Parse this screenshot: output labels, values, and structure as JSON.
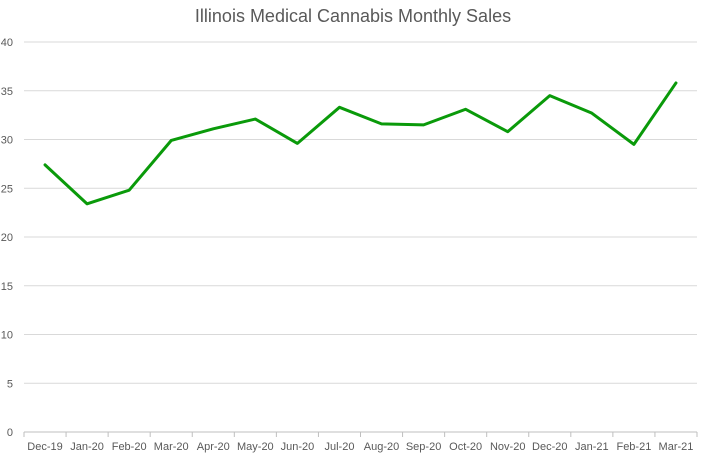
{
  "chart_data": {
    "type": "line",
    "title": "Illinois Medical Cannabis Monthly Sales",
    "xlabel": "",
    "ylabel": "",
    "ylim": [
      0,
      40
    ],
    "yticks": [
      0,
      5,
      10,
      15,
      20,
      25,
      30,
      35,
      40
    ],
    "grid": true,
    "legend": "none",
    "categories": [
      "Dec-19",
      "Jan-20",
      "Feb-20",
      "Mar-20",
      "Apr-20",
      "May-20",
      "Jun-20",
      "Jul-20",
      "Aug-20",
      "Sep-20",
      "Oct-20",
      "Nov-20",
      "Dec-20",
      "Jan-21",
      "Feb-21",
      "Mar-21"
    ],
    "series": [
      {
        "name": "Sales",
        "color": "#0a9a0a",
        "values": [
          27.4,
          23.4,
          24.8,
          29.9,
          31.1,
          32.1,
          29.6,
          33.3,
          31.6,
          31.5,
          33.1,
          30.8,
          34.5,
          32.7,
          29.5,
          35.8
        ]
      }
    ]
  }
}
